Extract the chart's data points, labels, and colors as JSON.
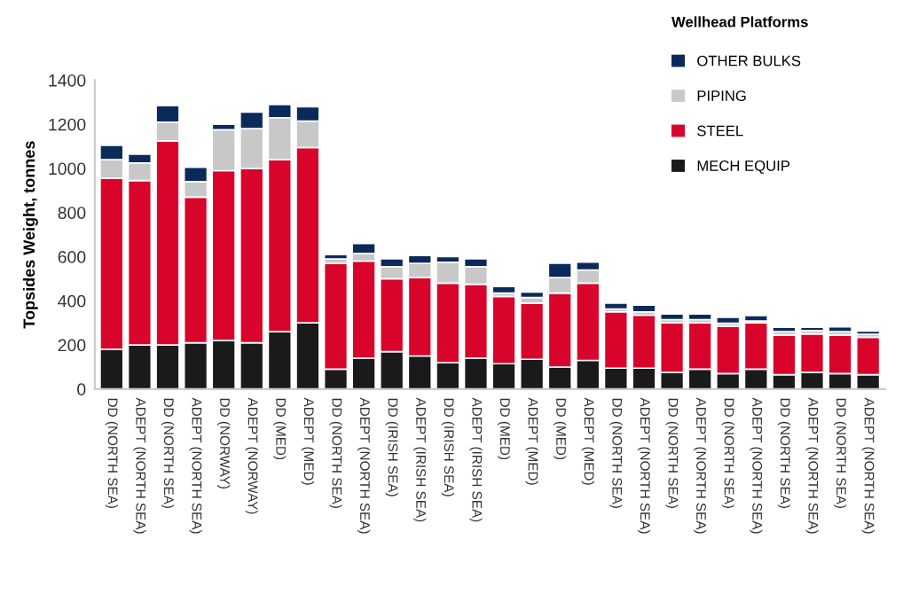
{
  "chart_data": {
    "type": "bar",
    "stacked": true,
    "ylabel": "Topsides Weight, tonnes",
    "legend_title": "Wellhead Platforms",
    "legend": "top right",
    "grid": false,
    "categories": [
      "DD (NORTH SEA)",
      "ADEPT (NORTH SEA)",
      "DD (NORTH SEA)",
      "ADEPT (NORTH SEA)",
      "DD (NORWAY)",
      "ADEPT (NORWAY)",
      "DD (MED)",
      "ADEPT (MED)",
      "DD (NORTH SEA)",
      "ADEPT (NORTH SEA)",
      "DD (IRISH SEA)",
      "ADEPT (IRISH SEA)",
      "DD (IRISH SEA)",
      "ADEPT (IRISH SEA)",
      "DD (MED)",
      "ADEPT (MED)",
      "DD (MED)",
      "ADEPT (MED)",
      "DD (NORTH SEA)",
      "ADEPT (NORTH SEA)",
      "DD (NORTH SEA)",
      "ADEPT (NORTH SEA)",
      "DD (NORTH SEA)",
      "ADEPT (NORTH SEA)",
      "DD (NORTH SEA)",
      "ADEPT (NORTH SEA)",
      "DD (NORTH SEA)",
      "ADEPT (NORTH SEA)"
    ],
    "ylim": [
      0,
      1400
    ],
    "yticks": [
      0,
      200,
      400,
      600,
      800,
      1000,
      1200,
      1400
    ],
    "series": [
      {
        "name": "MECH EQUIP",
        "color": "#1a1a1a",
        "values": [
          180,
          200,
          200,
          210,
          220,
          210,
          260,
          300,
          90,
          140,
          170,
          150,
          120,
          140,
          115,
          135,
          100,
          130,
          95,
          95,
          75,
          90,
          70,
          90,
          65,
          75,
          70,
          65
        ]
      },
      {
        "name": "STEEL",
        "color": "#d9042b",
        "values": [
          775,
          745,
          925,
          660,
          770,
          790,
          780,
          795,
          480,
          440,
          330,
          355,
          360,
          335,
          305,
          255,
          335,
          350,
          255,
          240,
          225,
          210,
          215,
          210,
          180,
          175,
          175,
          170
        ]
      },
      {
        "name": "PIPING",
        "color": "#c8c8c8",
        "values": [
          85,
          80,
          85,
          70,
          185,
          180,
          190,
          120,
          20,
          35,
          55,
          65,
          95,
          80,
          15,
          25,
          70,
          60,
          13,
          15,
          15,
          15,
          13,
          8,
          15,
          15,
          15,
          13
        ]
      },
      {
        "name": "OTHER BULKS",
        "color": "#0a2a5c",
        "values": [
          65,
          40,
          75,
          65,
          25,
          75,
          60,
          65,
          20,
          45,
          35,
          35,
          25,
          35,
          30,
          25,
          65,
          35,
          27,
          30,
          25,
          25,
          27,
          25,
          20,
          15,
          22,
          15
        ]
      }
    ]
  }
}
